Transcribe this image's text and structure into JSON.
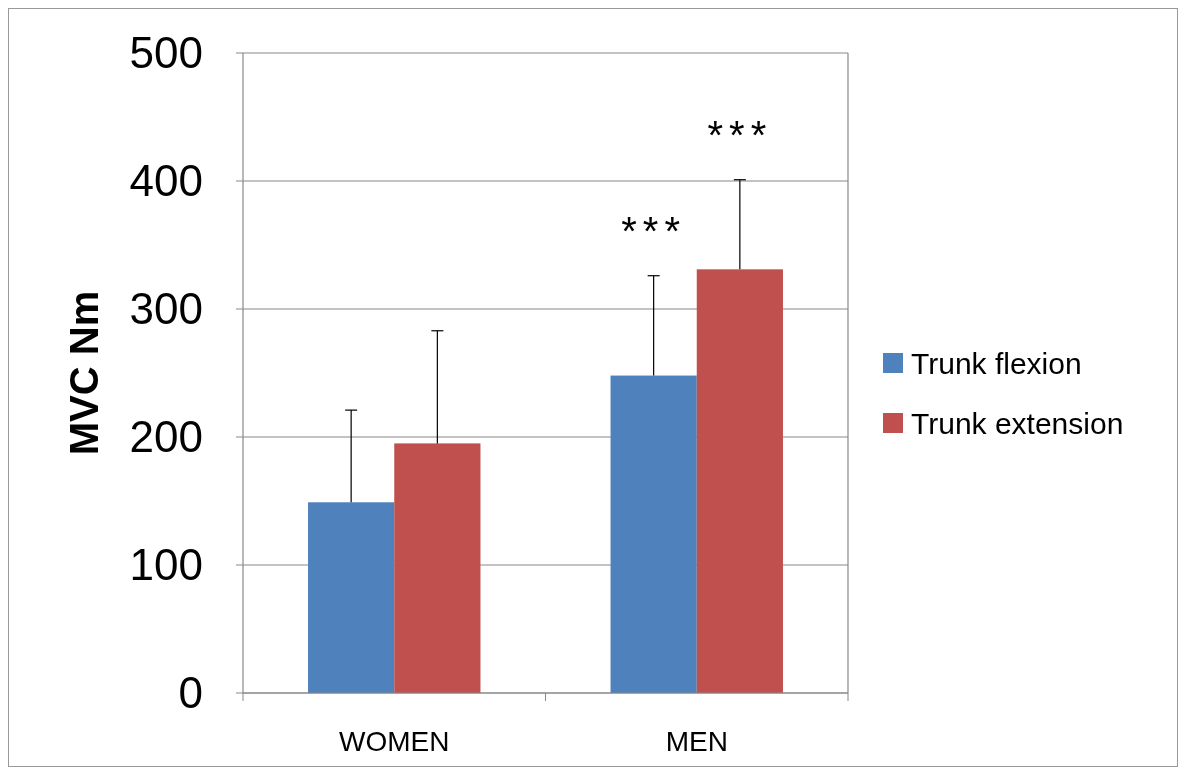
{
  "chart_data": {
    "type": "bar",
    "ylabel": "MVC Nm",
    "categories": [
      "WOMEN",
      "MEN"
    ],
    "series": [
      {
        "name": "Trunk flexion",
        "color": "#4f81bd",
        "values": [
          149,
          248
        ],
        "errors": [
          [
            149,
            221
          ],
          [
            248,
            326
          ]
        ]
      },
      {
        "name": "Trunk extension",
        "color": "#c0504d",
        "values": [
          195,
          331
        ],
        "errors": [
          [
            195,
            283
          ],
          [
            331,
            401
          ]
        ]
      }
    ],
    "ylim": [
      0,
      500
    ],
    "yticks": [
      0,
      100,
      200,
      300,
      400,
      500
    ],
    "grid": "y",
    "legend": "right",
    "annotations": [
      "***",
      "***"
    ]
  }
}
